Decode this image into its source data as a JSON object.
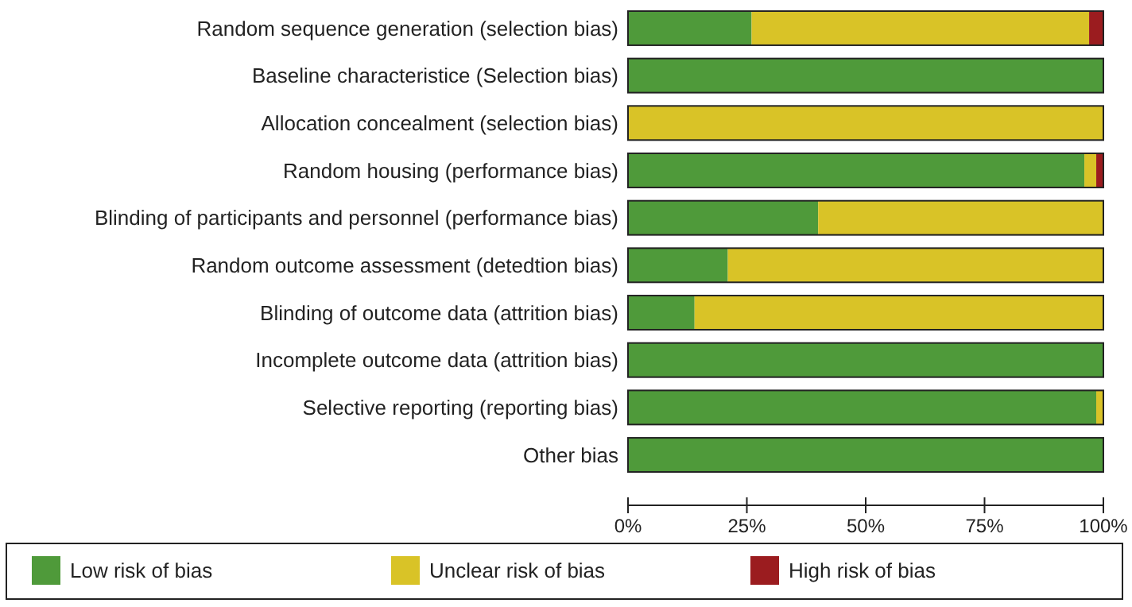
{
  "chart_data": {
    "type": "bar",
    "orientation": "horizontal",
    "stacked": true,
    "categories": [
      "Random sequence generation (selection bias)",
      "Baseline characteristice (Selection bias)",
      "Allocation concealment (selection bias)",
      "Random housing (performance bias)",
      "Blinding of participants and personnel (performance bias)",
      "Random outcome assessment (detedtion bias)",
      "Blinding of outcome data (attrition bias)",
      "Incomplete outcome data (attrition bias)",
      "Selective reporting (reporting bias)",
      "Other bias"
    ],
    "series": [
      {
        "name": "Low risk of bias",
        "color": "#4f9a3a",
        "values": [
          26,
          100,
          0,
          96,
          40,
          21,
          14,
          100,
          98.5,
          100
        ]
      },
      {
        "name": "Unclear risk of bias",
        "color": "#d9c327",
        "values": [
          71,
          0,
          100,
          2.5,
          60,
          79,
          86,
          0,
          1.5,
          0
        ]
      },
      {
        "name": "High risk of bias",
        "color": "#9b1c1f",
        "values": [
          3,
          0,
          0,
          1.5,
          0,
          0,
          0,
          0,
          0,
          0
        ]
      }
    ],
    "xlim": [
      0,
      100
    ],
    "xticks": [
      {
        "value": 0,
        "label": "0%"
      },
      {
        "value": 25,
        "label": "25%"
      },
      {
        "value": 50,
        "label": "50%"
      },
      {
        "value": 75,
        "label": "75%"
      },
      {
        "value": 100,
        "label": "100%"
      }
    ],
    "grid": false,
    "legend": "bottom"
  }
}
